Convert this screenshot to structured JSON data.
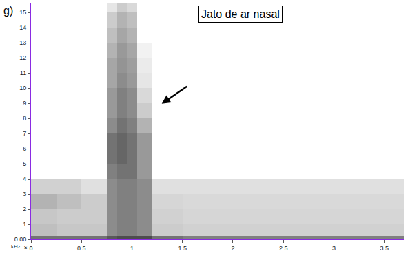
{
  "chart_data": {
    "type": "heatmap",
    "panel_label": "g)",
    "annotation": "Jato de ar nasal",
    "xlabel": "s",
    "ylabel": "kHz",
    "xlim": [
      0,
      3.7
    ],
    "ylim": [
      0,
      15.6
    ],
    "zlim": [
      0,
      100
    ],
    "xticks": [
      0,
      0.5,
      1,
      1.5,
      2,
      2.5,
      3,
      3.5
    ],
    "yticks": [
      {
        "value": 0,
        "label": "0.00"
      },
      1,
      2,
      3,
      4,
      5,
      6,
      7,
      8,
      9,
      10,
      11,
      12,
      13,
      14,
      15
    ],
    "x_bins": [
      0,
      0.25,
      0.5,
      0.75,
      0.85,
      0.95,
      1.05,
      1.2,
      1.5,
      1.75,
      2,
      2.25,
      2.5,
      2.75,
      3,
      3.25,
      3.5,
      3.7
    ],
    "y_bins": [
      0,
      0.25,
      1,
      2,
      3,
      4,
      5,
      6,
      7,
      8,
      9,
      10,
      11,
      12,
      13,
      14,
      15,
      15.6
    ],
    "cells": [
      [
        55,
        55,
        55,
        65,
        70,
        70,
        70,
        55,
        50,
        50,
        50,
        50,
        50,
        50,
        50,
        50,
        50
      ],
      [
        25,
        22,
        22,
        45,
        50,
        50,
        45,
        20,
        18,
        18,
        18,
        18,
        18,
        18,
        18,
        18,
        18
      ],
      [
        22,
        20,
        20,
        45,
        50,
        50,
        45,
        18,
        16,
        16,
        16,
        16,
        16,
        16,
        16,
        16,
        16
      ],
      [
        30,
        25,
        20,
        45,
        50,
        50,
        45,
        16,
        15,
        15,
        15,
        15,
        15,
        15,
        15,
        15,
        15
      ],
      [
        18,
        18,
        12,
        45,
        50,
        50,
        45,
        12,
        12,
        12,
        12,
        12,
        12,
        12,
        12,
        12,
        12
      ],
      [
        0,
        0,
        0,
        50,
        55,
        55,
        40,
        0,
        0,
        0,
        0,
        0,
        0,
        0,
        0,
        0,
        0
      ],
      [
        0,
        0,
        0,
        55,
        60,
        55,
        40,
        0,
        0,
        0,
        0,
        0,
        0,
        0,
        0,
        0,
        0
      ],
      [
        0,
        0,
        0,
        55,
        60,
        55,
        40,
        0,
        0,
        0,
        0,
        0,
        0,
        0,
        0,
        0,
        0
      ],
      [
        0,
        0,
        0,
        45,
        55,
        50,
        30,
        0,
        0,
        0,
        0,
        0,
        0,
        0,
        0,
        0,
        0
      ],
      [
        0,
        0,
        0,
        40,
        50,
        45,
        20,
        0,
        0,
        0,
        0,
        0,
        0,
        0,
        0,
        0,
        0
      ],
      [
        0,
        0,
        0,
        40,
        50,
        45,
        15,
        0,
        0,
        0,
        0,
        0,
        0,
        0,
        0,
        0,
        0
      ],
      [
        0,
        0,
        0,
        35,
        45,
        40,
        10,
        0,
        0,
        0,
        0,
        0,
        0,
        0,
        0,
        0,
        0
      ],
      [
        0,
        0,
        0,
        35,
        42,
        38,
        8,
        0,
        0,
        0,
        0,
        0,
        0,
        0,
        0,
        0,
        0
      ],
      [
        0,
        0,
        0,
        30,
        40,
        35,
        5,
        0,
        0,
        0,
        0,
        0,
        0,
        0,
        0,
        0,
        0
      ],
      [
        0,
        0,
        0,
        25,
        35,
        30,
        0,
        0,
        0,
        0,
        0,
        0,
        0,
        0,
        0,
        0,
        0
      ],
      [
        0,
        0,
        0,
        20,
        30,
        25,
        0,
        0,
        0,
        0,
        0,
        0,
        0,
        0,
        0,
        0,
        0
      ],
      [
        0,
        0,
        0,
        10,
        20,
        15,
        0,
        0,
        0,
        0,
        0,
        0,
        0,
        0,
        0,
        0,
        0
      ]
    ],
    "color": "#000000"
  }
}
